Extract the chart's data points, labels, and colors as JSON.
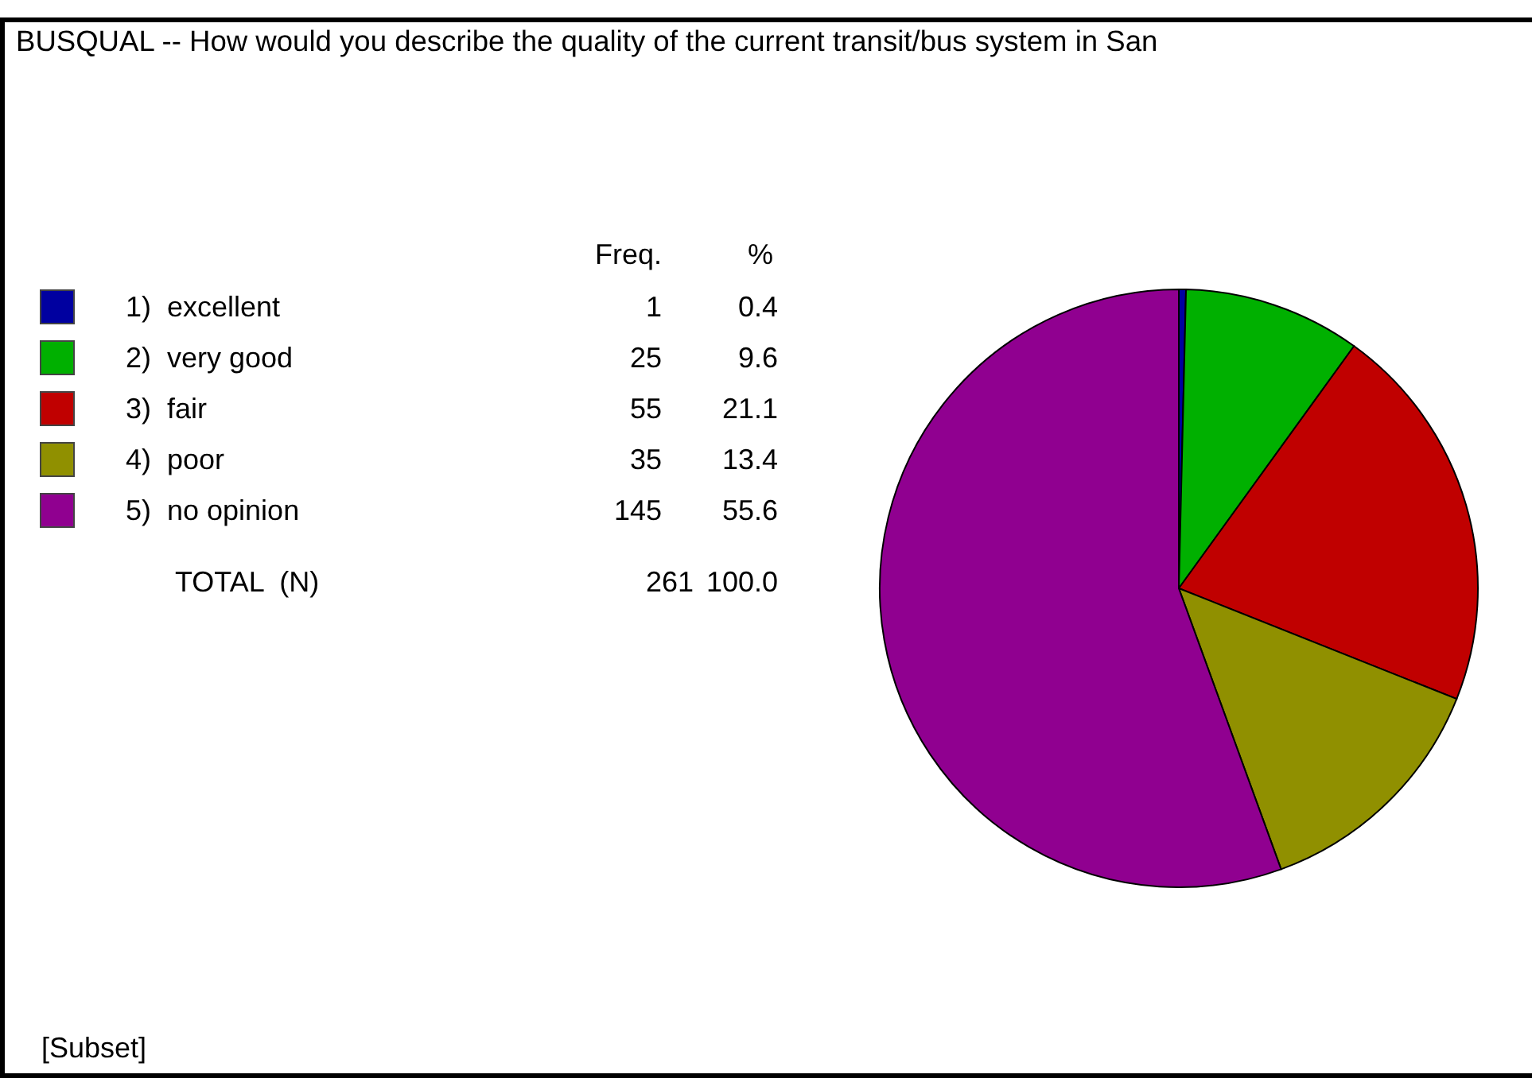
{
  "chart_data": {
    "type": "pie",
    "title": "BUSQUAL -- How would you describe the quality of the current transit/bus system in San",
    "categories": [
      "1)  excellent",
      "2)  very good",
      "3)  fair",
      "4)  poor",
      "5)  no opinion"
    ],
    "values": [
      1,
      25,
      55,
      35,
      145
    ],
    "colors": [
      "#0000a0",
      "#00b000",
      "#c00000",
      "#909000",
      "#900090"
    ],
    "data_labels": true,
    "legend": "top left",
    "annotations": [
      "Freq.",
      "%",
      "TOTAL  (N)",
      "261",
      "100.0",
      "[Subset]",
      "0.4",
      "9.6",
      "21.1",
      "13.4",
      "55.6"
    ]
  }
}
